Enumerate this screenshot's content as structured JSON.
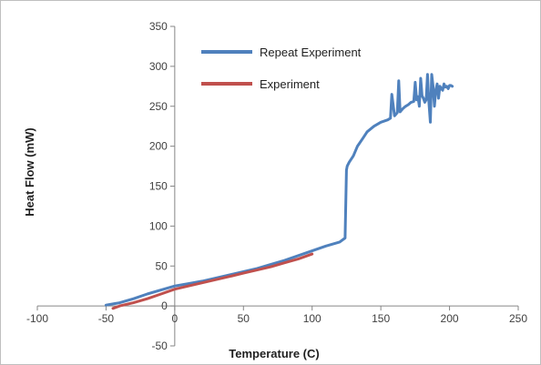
{
  "chart_data": {
    "type": "line",
    "xlabel": "Temperature (C)",
    "ylabel": "Heat Flow (mW)",
    "xlim": [
      -100,
      250
    ],
    "ylim": [
      -50,
      350
    ],
    "x_ticks": [
      -100,
      -50,
      0,
      50,
      100,
      150,
      200,
      250
    ],
    "y_ticks": [
      -50,
      0,
      50,
      100,
      150,
      200,
      250,
      300,
      350
    ],
    "x_tick_labels": [
      "-100",
      "-50",
      "0",
      "50",
      "100",
      "150",
      "200",
      "250"
    ],
    "y_tick_labels": [
      "-50",
      "0",
      "50",
      "100",
      "150",
      "200",
      "250",
      "300",
      "350"
    ],
    "grid": false,
    "legend_position": "top-left",
    "series": [
      {
        "name": "Repeat Experiment",
        "color": "#4f81bd",
        "x": [
          -50,
          -40,
          -30,
          -20,
          -10,
          0,
          10,
          20,
          30,
          40,
          50,
          60,
          70,
          80,
          90,
          100,
          110,
          120,
          124,
          125,
          125.5,
          127,
          130,
          133,
          137,
          140,
          145,
          150,
          155,
          157,
          158,
          160,
          161,
          162,
          163,
          164,
          165,
          166,
          168,
          170,
          172,
          174,
          175,
          176,
          177,
          178,
          179,
          180,
          181,
          182,
          183,
          184,
          185,
          186,
          187,
          188,
          189,
          190,
          191,
          192,
          193,
          194,
          195,
          196,
          197,
          198,
          199,
          200,
          201,
          202
        ],
        "y": [
          1,
          4,
          9,
          15,
          20,
          25,
          28,
          31,
          35,
          39,
          43,
          47,
          52,
          57,
          63,
          69,
          75,
          80,
          85,
          170,
          175,
          180,
          188,
          200,
          210,
          218,
          225,
          230,
          233,
          235,
          265,
          238,
          240,
          242,
          282,
          243,
          245,
          247,
          250,
          252,
          255,
          256,
          280,
          258,
          262,
          250,
          285,
          263,
          260,
          255,
          258,
          290,
          255,
          230,
          290,
          275,
          250,
          270,
          278,
          260,
          275,
          272,
          270,
          278,
          274,
          275,
          272,
          276,
          276,
          275
        ]
      },
      {
        "name": "Experiment",
        "color": "#c0504d",
        "x": [
          -45,
          -40,
          -30,
          -20,
          -10,
          0,
          10,
          20,
          30,
          40,
          50,
          60,
          70,
          80,
          90,
          100
        ],
        "y": [
          -3,
          0,
          4,
          9,
          15,
          21,
          25,
          29,
          33,
          37,
          41,
          45,
          49,
          54,
          59,
          65
        ]
      }
    ]
  }
}
